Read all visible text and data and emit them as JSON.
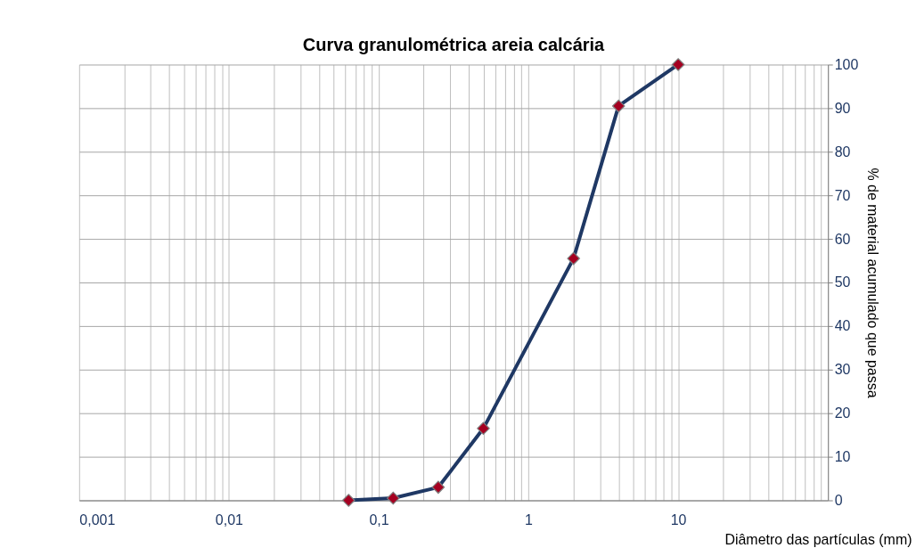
{
  "chart_data": {
    "type": "line",
    "title": "Curva granulométrica areia calcária",
    "xlabel": "Diâmetro das partículas (mm)",
    "ylabel": "% de material acumulado que passa",
    "x": [
      0.063,
      0.125,
      0.25,
      0.5,
      2,
      4,
      10
    ],
    "series": [
      {
        "color": "#1f3864",
        "colors": [
          "#a50021",
          "#a50021",
          "#a50021",
          "#a50021",
          "#a50021",
          "#a50021",
          "#a50021"
        ],
        "values": [
          0,
          0.5,
          3,
          16.5,
          55.5,
          90.5,
          100
        ]
      }
    ],
    "marker": "diamond",
    "line_style": "solid",
    "log": "x",
    "grid": true,
    "xlim": [
      0.001,
      100
    ],
    "xticks": [
      {
        "value": 0.001,
        "label": "0,001"
      },
      {
        "value": 0.002,
        "label": null
      },
      {
        "value": 0.003,
        "label": null
      },
      {
        "value": 0.004,
        "label": null
      },
      {
        "value": 0.005,
        "label": null
      },
      {
        "value": 0.006,
        "label": null
      },
      {
        "value": 0.007,
        "label": null
      },
      {
        "value": 0.008,
        "label": null
      },
      {
        "value": 0.009,
        "label": null
      },
      {
        "value": 0.01,
        "label": "0,01"
      },
      {
        "value": 0.02,
        "label": null
      },
      {
        "value": 0.03,
        "label": null
      },
      {
        "value": 0.04,
        "label": null
      },
      {
        "value": 0.05,
        "label": null
      },
      {
        "value": 0.06,
        "label": null
      },
      {
        "value": 0.07,
        "label": null
      },
      {
        "value": 0.08,
        "label": null
      },
      {
        "value": 0.09,
        "label": null
      },
      {
        "value": 0.1,
        "label": "0,1"
      },
      {
        "value": 0.2,
        "label": null
      },
      {
        "value": 0.3,
        "label": null
      },
      {
        "value": 0.4,
        "label": null
      },
      {
        "value": 0.5,
        "label": null
      },
      {
        "value": 0.6,
        "label": null
      },
      {
        "value": 0.7,
        "label": null
      },
      {
        "value": 0.8,
        "label": null
      },
      {
        "value": 0.9,
        "label": null
      },
      1,
      {
        "value": 2,
        "label": null
      },
      {
        "value": 3,
        "label": null
      },
      {
        "value": 4,
        "label": null
      },
      {
        "value": 5,
        "label": null
      },
      {
        "value": 6,
        "label": null
      },
      {
        "value": 7,
        "label": null
      },
      {
        "value": 8,
        "label": null
      },
      {
        "value": 9,
        "label": null
      },
      10,
      {
        "value": 20,
        "label": null
      },
      {
        "value": 30,
        "label": null
      },
      {
        "value": 40,
        "label": null
      },
      {
        "value": 50,
        "label": null
      },
      {
        "value": 60,
        "label": null
      },
      {
        "value": 70,
        "label": null
      },
      {
        "value": 80,
        "label": null
      },
      {
        "value": 90,
        "label": null
      },
      {
        "value": 100,
        "label": null
      }
    ],
    "ylim": [
      0,
      100
    ],
    "yticks": [
      0,
      10,
      20,
      30,
      40,
      50,
      60,
      70,
      80,
      90,
      100
    ]
  }
}
